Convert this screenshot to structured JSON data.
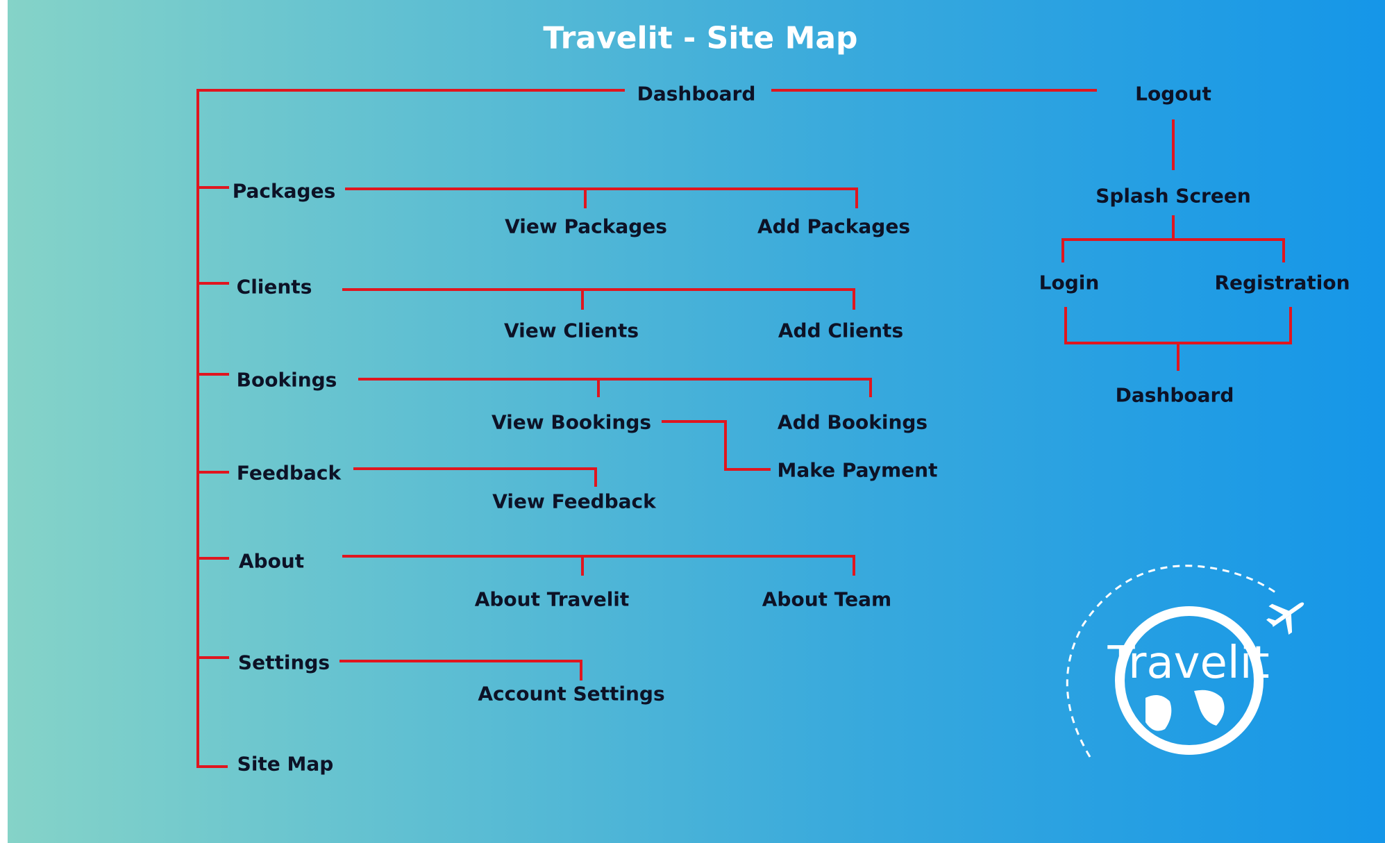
{
  "title": "Travelit - Site Map",
  "colors": {
    "connector": "#e0161f",
    "text": "#0d1226",
    "title": "#ffffff"
  },
  "nodes": {
    "dashboard": "Dashboard",
    "logout": "Logout",
    "splash": "Splash Screen",
    "login": "Login",
    "registration": "Registration",
    "dashboard2": "Dashboard",
    "packages": "Packages",
    "view_packages": "View Packages",
    "add_packages": "Add Packages",
    "clients": "Clients",
    "view_clients": "View Clients",
    "add_clients": "Add Clients",
    "bookings": "Bookings",
    "view_bookings": "View Bookings",
    "add_bookings": "Add Bookings",
    "make_payment": "Make Payment",
    "feedback": "Feedback",
    "view_feedback": "View Feedback",
    "about": "About",
    "about_travelit": "About Travelit",
    "about_team": "About Team",
    "settings": "Settings",
    "account_settings": "Account Settings",
    "site_map": "Site Map"
  },
  "logo": {
    "text": "Travelit",
    "icons": [
      "globe-icon",
      "airplane-icon"
    ]
  }
}
